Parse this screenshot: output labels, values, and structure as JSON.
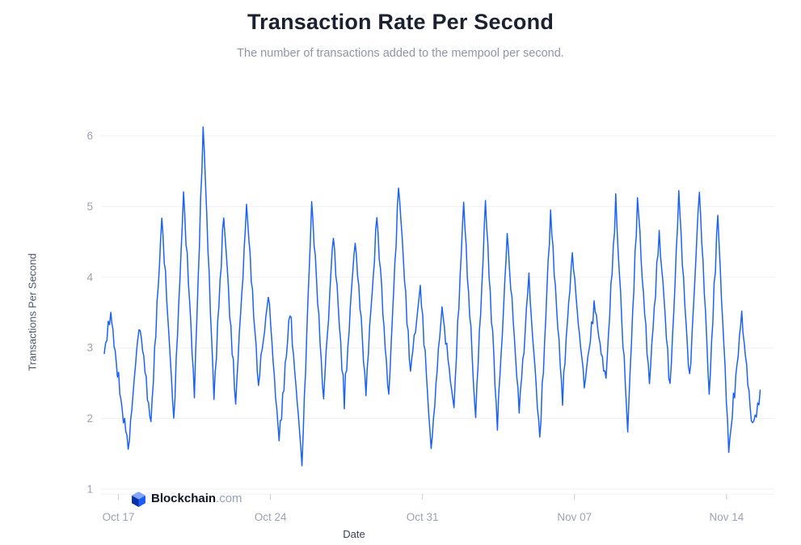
{
  "page": {
    "title": "Transaction Rate Per Second",
    "subtitle": "The number of transactions added to the mempool per second."
  },
  "branding": {
    "name": "Blockchain",
    "suffix": ".com"
  },
  "chart_data": {
    "type": "line",
    "title": "Transaction Rate Per Second",
    "subtitle": "The number of transactions added to the mempool per second.",
    "xlabel": "Date",
    "ylabel": "Transactions Per Second",
    "legend": "none",
    "grid": "horizontal",
    "line_color": "#1a63f5",
    "x_ticks": [
      {
        "day": 0,
        "label": "Oct 17"
      },
      {
        "day": 7,
        "label": "Oct 24"
      },
      {
        "day": 14,
        "label": "Oct 31"
      },
      {
        "day": 21,
        "label": "Nov 07"
      },
      {
        "day": 28,
        "label": "Nov 14"
      }
    ],
    "y_ticks": [
      1,
      2,
      3,
      4,
      5,
      6
    ],
    "xlim_days": [
      -0.8,
      30.2
    ],
    "ylim": [
      1,
      6.4
    ],
    "series": [
      {
        "name": "Transactions Per Second",
        "unit": "tx/s",
        "keypoints_day_value": [
          [
            -0.65,
            2.95
          ],
          [
            -0.35,
            3.45
          ],
          [
            -0.1,
            2.8
          ],
          [
            0.45,
            1.55
          ],
          [
            0.95,
            3.35
          ],
          [
            1.5,
            1.95
          ],
          [
            2.0,
            4.85
          ],
          [
            2.55,
            2.0
          ],
          [
            3.0,
            5.2
          ],
          [
            3.5,
            2.35
          ],
          [
            3.9,
            6.15
          ],
          [
            4.4,
            2.3
          ],
          [
            4.85,
            4.9
          ],
          [
            5.4,
            2.2
          ],
          [
            5.9,
            5.0
          ],
          [
            6.45,
            2.45
          ],
          [
            6.9,
            3.8
          ],
          [
            7.4,
            1.65
          ],
          [
            7.9,
            3.55
          ],
          [
            8.45,
            1.35
          ],
          [
            8.9,
            5.05
          ],
          [
            9.45,
            2.3
          ],
          [
            9.9,
            4.65
          ],
          [
            10.4,
            2.25
          ],
          [
            10.9,
            4.6
          ],
          [
            11.4,
            2.4
          ],
          [
            11.9,
            4.85
          ],
          [
            12.45,
            2.3
          ],
          [
            12.9,
            5.3
          ],
          [
            13.45,
            2.6
          ],
          [
            13.9,
            3.9
          ],
          [
            14.4,
            1.6
          ],
          [
            14.9,
            3.55
          ],
          [
            15.45,
            2.2
          ],
          [
            15.9,
            5.0
          ],
          [
            16.45,
            2.0
          ],
          [
            16.9,
            5.05
          ],
          [
            17.45,
            1.9
          ],
          [
            17.9,
            4.6
          ],
          [
            18.45,
            2.1
          ],
          [
            18.9,
            3.95
          ],
          [
            19.4,
            1.7
          ],
          [
            19.9,
            4.9
          ],
          [
            20.45,
            2.3
          ],
          [
            20.9,
            4.35
          ],
          [
            21.45,
            2.45
          ],
          [
            21.9,
            3.6
          ],
          [
            22.45,
            2.6
          ],
          [
            22.9,
            5.05
          ],
          [
            23.45,
            1.8
          ],
          [
            23.9,
            5.1
          ],
          [
            24.45,
            2.45
          ],
          [
            24.9,
            4.65
          ],
          [
            25.4,
            2.4
          ],
          [
            25.8,
            5.15
          ],
          [
            26.3,
            2.55
          ],
          [
            26.75,
            5.2
          ],
          [
            27.2,
            2.4
          ],
          [
            27.6,
            4.85
          ],
          [
            28.1,
            1.55
          ],
          [
            28.7,
            3.45
          ],
          [
            29.2,
            1.85
          ],
          [
            29.55,
            2.4
          ]
        ]
      }
    ]
  }
}
